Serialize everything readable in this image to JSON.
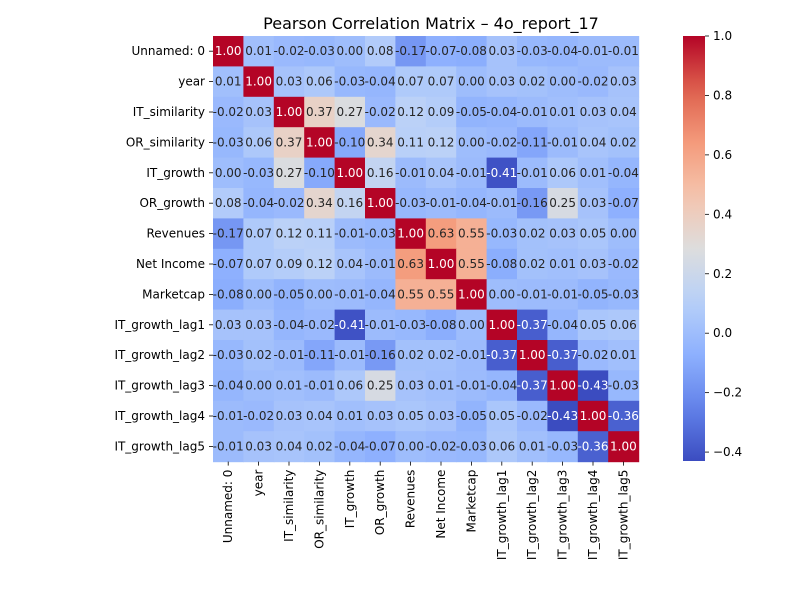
{
  "chart_data": {
    "type": "heatmap",
    "title": "Pearson Correlation Matrix – 4o_report_17",
    "x_labels": [
      "Unnamed: 0",
      "year",
      "IT_similarity",
      "OR_similarity",
      "IT_growth",
      "OR_growth",
      "Revenues",
      "Net Income",
      "Marketcap",
      "IT_growth_lag1",
      "IT_growth_lag2",
      "IT_growth_lag3",
      "IT_growth_lag4",
      "IT_growth_lag5"
    ],
    "y_labels": [
      "Unnamed: 0",
      "year",
      "IT_similarity",
      "OR_similarity",
      "IT_growth",
      "OR_growth",
      "Revenues",
      "Net Income",
      "Marketcap",
      "IT_growth_lag1",
      "IT_growth_lag2",
      "IT_growth_lag3",
      "IT_growth_lag4",
      "IT_growth_lag5"
    ],
    "values": [
      [
        1.0,
        0.01,
        -0.02,
        -0.03,
        0.0,
        0.08,
        -0.17,
        -0.07,
        -0.08,
        0.03,
        -0.03,
        -0.04,
        -0.01,
        -0.01
      ],
      [
        0.01,
        1.0,
        0.03,
        0.06,
        -0.03,
        -0.04,
        0.07,
        0.07,
        0.0,
        0.03,
        0.02,
        0.0,
        -0.02,
        0.03
      ],
      [
        -0.02,
        0.03,
        1.0,
        0.37,
        0.27,
        -0.02,
        0.12,
        0.09,
        -0.05,
        -0.04,
        -0.01,
        0.01,
        0.03,
        0.04
      ],
      [
        -0.03,
        0.06,
        0.37,
        1.0,
        -0.1,
        0.34,
        0.11,
        0.12,
        0.0,
        -0.02,
        -0.11,
        -0.01,
        0.04,
        0.02
      ],
      [
        0.0,
        -0.03,
        0.27,
        -0.1,
        1.0,
        0.16,
        -0.01,
        0.04,
        -0.01,
        -0.41,
        -0.01,
        0.06,
        0.01,
        -0.04
      ],
      [
        0.08,
        -0.04,
        -0.02,
        0.34,
        0.16,
        1.0,
        -0.03,
        -0.01,
        -0.04,
        -0.01,
        -0.16,
        0.25,
        0.03,
        -0.07
      ],
      [
        -0.17,
        0.07,
        0.12,
        0.11,
        -0.01,
        -0.03,
        1.0,
        0.63,
        0.55,
        -0.03,
        0.02,
        0.03,
        0.05,
        -0.0
      ],
      [
        -0.07,
        0.07,
        0.09,
        0.12,
        0.04,
        -0.01,
        0.63,
        1.0,
        0.55,
        -0.08,
        0.02,
        0.01,
        0.03,
        -0.02
      ],
      [
        -0.08,
        0.0,
        -0.05,
        0.0,
        -0.01,
        -0.04,
        0.55,
        0.55,
        1.0,
        -0.0,
        -0.01,
        -0.01,
        -0.05,
        -0.03
      ],
      [
        0.03,
        0.03,
        -0.04,
        -0.02,
        -0.41,
        -0.01,
        -0.03,
        -0.08,
        -0.0,
        1.0,
        -0.37,
        -0.04,
        0.05,
        0.06
      ],
      [
        -0.03,
        0.02,
        -0.01,
        -0.11,
        -0.01,
        -0.16,
        0.02,
        0.02,
        -0.01,
        -0.37,
        1.0,
        -0.37,
        -0.02,
        0.01
      ],
      [
        -0.04,
        0.0,
        0.01,
        -0.01,
        0.06,
        0.25,
        0.03,
        0.01,
        -0.01,
        -0.04,
        -0.37,
        1.0,
        -0.43,
        -0.03
      ],
      [
        -0.01,
        -0.02,
        0.03,
        0.04,
        0.01,
        0.03,
        0.05,
        0.03,
        -0.05,
        0.05,
        -0.02,
        -0.43,
        1.0,
        -0.36
      ],
      [
        -0.01,
        0.03,
        0.04,
        0.02,
        -0.04,
        -0.07,
        -0.0,
        -0.02,
        -0.03,
        0.06,
        0.01,
        -0.03,
        -0.36,
        1.0
      ]
    ],
    "colormap": "coolwarm",
    "vmin": -0.43,
    "vmax": 1.0,
    "colorbar_ticks": [
      "1.0",
      "0.8",
      "0.6",
      "0.4",
      "0.2",
      "0.0",
      "−0.2",
      "−0.4"
    ],
    "colorbar_tick_values": [
      1.0,
      0.8,
      0.6,
      0.4,
      0.2,
      0.0,
      -0.2,
      -0.4
    ],
    "annotations": true,
    "annotation_format": "2 decimals"
  }
}
